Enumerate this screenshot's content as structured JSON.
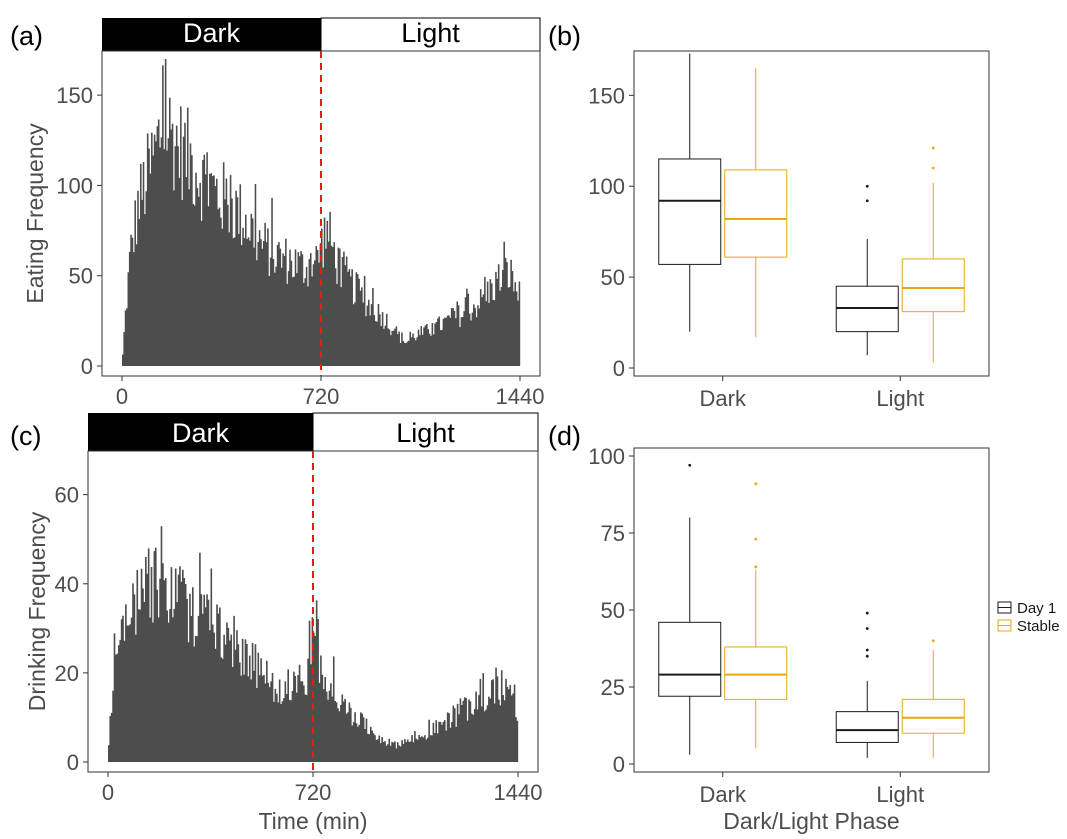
{
  "panels": {
    "a": "(a)",
    "b": "(b)",
    "c": "(c)",
    "d": "(d)"
  },
  "phase_labels": {
    "dark": "Dark",
    "light": "Light"
  },
  "legend": {
    "items": [
      {
        "label": "Day 1",
        "color": "#1a1a1a"
      },
      {
        "label": "Stable",
        "color": "#E6A817"
      }
    ]
  },
  "colors": {
    "bars": "#4d4d4d",
    "divider": "#e41a1c",
    "day1": "#1a1a1a",
    "stable": "#E6A817",
    "dark_band": "#000000"
  },
  "chart_data": [
    {
      "id": "a",
      "type": "bar",
      "title": "",
      "xlabel": "",
      "ylabel": "Eating Frequency",
      "xlim": [
        0,
        1440
      ],
      "ylim": [
        0,
        170
      ],
      "xticks": [
        0,
        720,
        1440
      ],
      "yticks": [
        0,
        50,
        100,
        150
      ],
      "phase_band": true,
      "divider_x": 720,
      "series_profile": {
        "x": [
          0,
          10,
          30,
          60,
          100,
          130,
          150,
          170,
          200,
          250,
          300,
          350,
          400,
          450,
          500,
          550,
          600,
          650,
          700,
          720,
          740,
          780,
          830,
          880,
          950,
          1000,
          1030,
          1060,
          1100,
          1150,
          1200,
          1250,
          1300,
          1330,
          1360,
          1400,
          1420,
          1440
        ],
        "y": [
          0,
          25,
          65,
          95,
          115,
          130,
          145,
          138,
          130,
          120,
          108,
          100,
          93,
          85,
          72,
          65,
          62,
          58,
          60,
          70,
          80,
          60,
          48,
          38,
          28,
          18,
          14,
          18,
          20,
          24,
          28,
          32,
          38,
          44,
          50,
          55,
          48,
          40
        ]
      }
    },
    {
      "id": "b",
      "type": "box",
      "title": "",
      "xlabel": "",
      "ylabel": "",
      "categories": [
        "Dark",
        "Light"
      ],
      "ylim": [
        0,
        170
      ],
      "yticks": [
        0,
        50,
        100,
        150
      ],
      "series": [
        {
          "name": "Day 1",
          "boxes": [
            {
              "category": "Dark",
              "min": 20,
              "q1": 57,
              "median": 92,
              "q3": 115,
              "max": 173,
              "outliers": []
            },
            {
              "category": "Light",
              "min": 7,
              "q1": 20,
              "median": 33,
              "q3": 45,
              "max": 71,
              "outliers": [
                92,
                100
              ]
            }
          ]
        },
        {
          "name": "Stable",
          "boxes": [
            {
              "category": "Dark",
              "min": 17,
              "q1": 61,
              "median": 82,
              "q3": 109,
              "max": 165,
              "outliers": []
            },
            {
              "category": "Light",
              "min": 3,
              "q1": 31,
              "median": 44,
              "q3": 60,
              "max": 102,
              "outliers": [
                110,
                121
              ]
            }
          ]
        }
      ]
    },
    {
      "id": "c",
      "type": "bar",
      "title": "",
      "xlabel": "Time (min)",
      "ylabel": "Drinking Frequency",
      "xlim": [
        0,
        1440
      ],
      "ylim": [
        0,
        68
      ],
      "xticks": [
        0,
        720,
        1440
      ],
      "yticks": [
        0,
        20,
        40,
        60
      ],
      "phase_band": true,
      "divider_x": 720,
      "series_profile": {
        "x": [
          0,
          10,
          20,
          50,
          80,
          110,
          140,
          170,
          200,
          250,
          300,
          350,
          400,
          450,
          500,
          550,
          600,
          650,
          700,
          720,
          740,
          780,
          830,
          880,
          950,
          1000,
          1050,
          1100,
          1150,
          1200,
          1250,
          1300,
          1350,
          1400,
          1420,
          1440
        ],
        "y": [
          2,
          12,
          22,
          30,
          35,
          40,
          45,
          42,
          40,
          38,
          36,
          34,
          30,
          28,
          24,
          20,
          18,
          18,
          20,
          30,
          24,
          18,
          13,
          10,
          6,
          4,
          5,
          6,
          8,
          10,
          12,
          14,
          16,
          18,
          15,
          12
        ]
      }
    },
    {
      "id": "d",
      "type": "box",
      "title": "",
      "xlabel": "Dark/Light Phase",
      "ylabel": "",
      "categories": [
        "Dark",
        "Light"
      ],
      "ylim": [
        0,
        100
      ],
      "yticks": [
        0,
        25,
        50,
        75,
        100
      ],
      "series": [
        {
          "name": "Day 1",
          "boxes": [
            {
              "category": "Dark",
              "min": 3,
              "q1": 22,
              "median": 29,
              "q3": 46,
              "max": 80,
              "outliers": [
                97
              ]
            },
            {
              "category": "Light",
              "min": 2,
              "q1": 7,
              "median": 11,
              "q3": 17,
              "max": 27,
              "outliers": [
                35,
                37,
                44,
                49
              ]
            }
          ]
        },
        {
          "name": "Stable",
          "boxes": [
            {
              "category": "Dark",
              "min": 5,
              "q1": 21,
              "median": 29,
              "q3": 38,
              "max": 63,
              "outliers": [
                64,
                73,
                91
              ]
            },
            {
              "category": "Light",
              "min": 2,
              "q1": 10,
              "median": 15,
              "q3": 21,
              "max": 37,
              "outliers": [
                40
              ]
            }
          ]
        }
      ]
    }
  ]
}
